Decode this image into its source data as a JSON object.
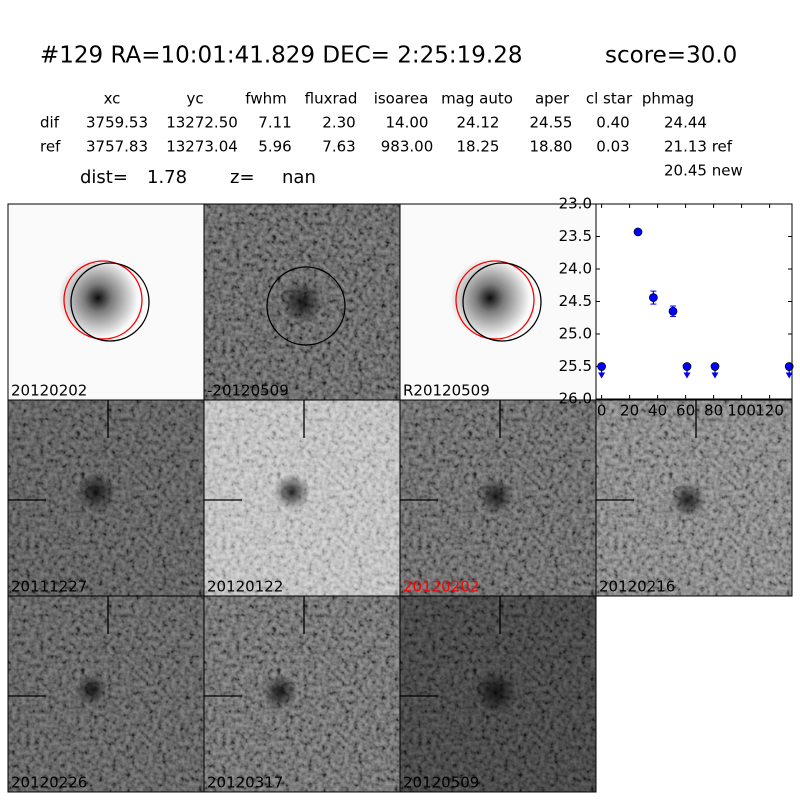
{
  "header": {
    "title": "#129   RA=10:01:41.829 DEC= 2:25:19.28",
    "score": "score=30.0"
  },
  "table": {
    "columns": [
      "xc",
      "yc",
      "fwhm",
      "fluxrad",
      "isoarea",
      "mag auto",
      "aper",
      "cl star",
      "phmag"
    ],
    "rows": [
      {
        "label": "dif",
        "cells": [
          "3759.53",
          "13272.50",
          "7.11",
          "2.30",
          "14.00",
          "24.12",
          "24.55",
          "0.40",
          "24.44"
        ]
      },
      {
        "label": "ref",
        "cells": [
          "3757.83",
          "13273.04",
          "5.96",
          "7.63",
          "983.00",
          "18.25",
          "18.80",
          "0.03",
          "21.13 ref"
        ]
      }
    ],
    "note": "20.45 new"
  },
  "dist": {
    "label": "dist=",
    "value": "1.78"
  },
  "z": {
    "label": "z=",
    "value": "nan"
  },
  "stamps": [
    {
      "label": "20120202"
    },
    {
      "label": "-20120509"
    },
    {
      "label": "R20120509"
    },
    {
      "label": "20111227"
    },
    {
      "label": "20120122"
    },
    {
      "label": "20120202",
      "color": "#ff0000"
    },
    {
      "label": "20120216"
    },
    {
      "label": "20120226"
    },
    {
      "label": "20120317"
    },
    {
      "label": "20120509"
    }
  ],
  "chart_data": {
    "type": "scatter",
    "y_inverted": true,
    "xlim": [
      -4,
      136
    ],
    "xticks": [
      0,
      20,
      40,
      60,
      80,
      100,
      120
    ],
    "ylim": [
      23,
      26
    ],
    "yticks": [
      {
        "value": 23,
        "label": "23.0"
      },
      {
        "value": 23.5,
        "label": "23.5"
      },
      {
        "value": 24,
        "label": "24.0"
      },
      {
        "value": 24.5,
        "label": "24.5"
      },
      {
        "value": 25,
        "label": "25.0"
      },
      {
        "value": 25.5,
        "label": "25.5"
      },
      {
        "value": 26,
        "label": "26.0"
      }
    ],
    "series": [
      {
        "color": "#0000ff",
        "x": [
          26,
          37,
          51
        ],
        "values": [
          23.43,
          24.44,
          24.65
        ],
        "errors": [
          0.02,
          0.1,
          0.08
        ]
      },
      {
        "color": "#0000ff",
        "upper_limit": true,
        "x": [
          0,
          61,
          81,
          134
        ],
        "values": [
          25.5,
          25.5,
          25.5,
          25.5
        ]
      }
    ]
  }
}
